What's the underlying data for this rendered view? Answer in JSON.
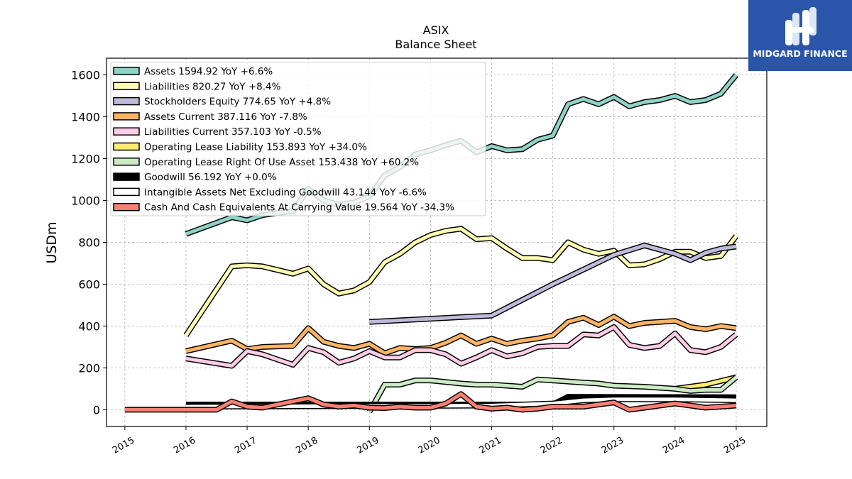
{
  "chart_data": {
    "type": "line",
    "title": "ASIX",
    "subtitle": "Balance  Sheet",
    "ylabel": "USDm",
    "xlabel": "",
    "xlim": [
      2014.7,
      2025.5
    ],
    "ylim": [
      -80,
      1680
    ],
    "x_ticks": [
      2015,
      2016,
      2017,
      2018,
      2019,
      2020,
      2021,
      2022,
      2023,
      2024,
      2025
    ],
    "y_ticks": [
      0,
      200,
      400,
      600,
      800,
      1000,
      1200,
      1400,
      1600
    ],
    "grid": true,
    "legend_position": "top-left",
    "series": [
      {
        "name": "Assets",
        "legend": "Assets  1594.92 YoY +6.6%",
        "color": "#8dd3c7",
        "points": [
          [
            2016.0,
            840
          ],
          [
            2016.75,
            920
          ],
          [
            2017.0,
            905
          ],
          [
            2017.25,
            930
          ],
          [
            2017.75,
            950
          ],
          [
            2018.0,
            1055
          ],
          [
            2018.25,
            1000
          ],
          [
            2018.5,
            980
          ],
          [
            2018.75,
            990
          ],
          [
            2019.0,
            1020
          ],
          [
            2019.25,
            1120
          ],
          [
            2019.5,
            1160
          ],
          [
            2019.75,
            1220
          ],
          [
            2020.0,
            1240
          ],
          [
            2020.25,
            1265
          ],
          [
            2020.5,
            1285
          ],
          [
            2020.75,
            1230
          ],
          [
            2021.0,
            1260
          ],
          [
            2021.25,
            1240
          ],
          [
            2021.5,
            1245
          ],
          [
            2021.75,
            1290
          ],
          [
            2022.0,
            1310
          ],
          [
            2022.25,
            1460
          ],
          [
            2022.5,
            1485
          ],
          [
            2022.75,
            1460
          ],
          [
            2023.0,
            1495
          ],
          [
            2023.25,
            1450
          ],
          [
            2023.5,
            1470
          ],
          [
            2023.75,
            1480
          ],
          [
            2024.0,
            1500
          ],
          [
            2024.25,
            1470
          ],
          [
            2024.5,
            1480
          ],
          [
            2024.75,
            1510
          ],
          [
            2025.0,
            1600
          ]
        ]
      },
      {
        "name": "Liabilities",
        "legend": "Liabilities  820.27 YoY +8.4%",
        "color": "#ffffb3",
        "points": [
          [
            2016.0,
            355
          ],
          [
            2016.75,
            685
          ],
          [
            2017.0,
            690
          ],
          [
            2017.25,
            685
          ],
          [
            2017.75,
            650
          ],
          [
            2018.0,
            675
          ],
          [
            2018.25,
            600
          ],
          [
            2018.5,
            555
          ],
          [
            2018.75,
            570
          ],
          [
            2019.0,
            610
          ],
          [
            2019.25,
            705
          ],
          [
            2019.5,
            745
          ],
          [
            2019.75,
            800
          ],
          [
            2020.0,
            835
          ],
          [
            2020.25,
            855
          ],
          [
            2020.5,
            865
          ],
          [
            2020.75,
            815
          ],
          [
            2021.0,
            820
          ],
          [
            2021.25,
            770
          ],
          [
            2021.5,
            725
          ],
          [
            2021.75,
            725
          ],
          [
            2022.0,
            715
          ],
          [
            2022.25,
            800
          ],
          [
            2022.5,
            765
          ],
          [
            2022.75,
            745
          ],
          [
            2023.0,
            760
          ],
          [
            2023.25,
            690
          ],
          [
            2023.5,
            695
          ],
          [
            2023.75,
            720
          ],
          [
            2024.0,
            755
          ],
          [
            2024.25,
            755
          ],
          [
            2024.5,
            725
          ],
          [
            2024.75,
            735
          ],
          [
            2025.0,
            830
          ]
        ]
      },
      {
        "name": "Stockholders Equity",
        "legend": "Stockholders Equity  774.65 YoY +4.8%",
        "color": "#bebada",
        "points": [
          [
            2019.0,
            420
          ],
          [
            2021.0,
            450
          ],
          [
            2022.0,
            600
          ],
          [
            2023.0,
            740
          ],
          [
            2023.5,
            785
          ],
          [
            2024.0,
            745
          ],
          [
            2024.25,
            715
          ],
          [
            2024.5,
            750
          ],
          [
            2024.75,
            770
          ],
          [
            2025.0,
            780
          ]
        ]
      },
      {
        "name": "Assets Current",
        "legend": "Assets Current  387.116 YoY -7.8%",
        "color": "#fdb462",
        "points": [
          [
            2016.0,
            280
          ],
          [
            2016.75,
            330
          ],
          [
            2017.0,
            290
          ],
          [
            2017.25,
            300
          ],
          [
            2017.75,
            305
          ],
          [
            2018.0,
            390
          ],
          [
            2018.25,
            325
          ],
          [
            2018.5,
            305
          ],
          [
            2018.75,
            295
          ],
          [
            2019.0,
            315
          ],
          [
            2019.25,
            270
          ],
          [
            2019.5,
            295
          ],
          [
            2019.75,
            290
          ],
          [
            2020.0,
            295
          ],
          [
            2020.25,
            320
          ],
          [
            2020.5,
            355
          ],
          [
            2020.75,
            315
          ],
          [
            2021.0,
            340
          ],
          [
            2021.25,
            315
          ],
          [
            2021.5,
            330
          ],
          [
            2021.75,
            340
          ],
          [
            2022.0,
            355
          ],
          [
            2022.25,
            420
          ],
          [
            2022.5,
            440
          ],
          [
            2022.75,
            405
          ],
          [
            2023.0,
            445
          ],
          [
            2023.25,
            400
          ],
          [
            2023.5,
            415
          ],
          [
            2023.75,
            420
          ],
          [
            2024.0,
            425
          ],
          [
            2024.25,
            395
          ],
          [
            2024.5,
            385
          ],
          [
            2024.75,
            400
          ],
          [
            2025.0,
            390
          ]
        ]
      },
      {
        "name": "Liabilities Current",
        "legend": "Liabilities Current  357.103 YoY -0.5%",
        "color": "#fccde5",
        "points": [
          [
            2016.0,
            245
          ],
          [
            2016.75,
            210
          ],
          [
            2017.0,
            280
          ],
          [
            2017.25,
            265
          ],
          [
            2017.75,
            215
          ],
          [
            2018.0,
            295
          ],
          [
            2018.25,
            275
          ],
          [
            2018.5,
            225
          ],
          [
            2018.75,
            245
          ],
          [
            2019.0,
            280
          ],
          [
            2019.25,
            250
          ],
          [
            2019.5,
            250
          ],
          [
            2019.75,
            285
          ],
          [
            2020.0,
            285
          ],
          [
            2020.25,
            265
          ],
          [
            2020.5,
            220
          ],
          [
            2020.75,
            250
          ],
          [
            2021.0,
            285
          ],
          [
            2021.25,
            255
          ],
          [
            2021.5,
            270
          ],
          [
            2021.75,
            300
          ],
          [
            2022.0,
            305
          ],
          [
            2022.25,
            305
          ],
          [
            2022.5,
            360
          ],
          [
            2022.75,
            355
          ],
          [
            2023.0,
            395
          ],
          [
            2023.25,
            310
          ],
          [
            2023.5,
            295
          ],
          [
            2023.75,
            305
          ],
          [
            2024.0,
            365
          ],
          [
            2024.25,
            285
          ],
          [
            2024.5,
            275
          ],
          [
            2024.75,
            300
          ],
          [
            2025.0,
            360
          ]
        ]
      },
      {
        "name": "Operating Lease Liability",
        "legend": "Operating Lease Liability  153.893 YoY +34.0%",
        "color": "#ffed6f",
        "points": [
          [
            2024.0,
            100
          ],
          [
            2024.5,
            120
          ],
          [
            2025.0,
            155
          ]
        ]
      },
      {
        "name": "Operating Lease Right Of Use Asset",
        "legend": "Operating Lease Right Of Use Asset  153.438 YoY +60.2%",
        "color": "#ccebc5",
        "points": [
          [
            2019.0,
            -10
          ],
          [
            2019.25,
            120
          ],
          [
            2019.5,
            120
          ],
          [
            2019.75,
            140
          ],
          [
            2020.0,
            140
          ],
          [
            2020.5,
            125
          ],
          [
            2020.75,
            120
          ],
          [
            2021.0,
            120
          ],
          [
            2021.5,
            110
          ],
          [
            2021.75,
            145
          ],
          [
            2022.0,
            140
          ],
          [
            2022.5,
            130
          ],
          [
            2022.75,
            125
          ],
          [
            2023.0,
            115
          ],
          [
            2023.5,
            110
          ],
          [
            2024.0,
            100
          ],
          [
            2024.25,
            90
          ],
          [
            2024.5,
            95
          ],
          [
            2024.75,
            95
          ],
          [
            2025.0,
            155
          ]
        ]
      },
      {
        "name": "Goodwill",
        "legend": "Goodwill  56.192 YoY +0.0%",
        "color": "#000000",
        "points": [
          [
            2016.0,
            25
          ],
          [
            2022.0,
            25
          ],
          [
            2022.25,
            62
          ],
          [
            2025.0,
            60
          ]
        ]
      },
      {
        "name": "Intangible Assets Net Excluding Goodwill",
        "legend": "Intangible Assets Net Excluding Goodwill  43.144 YoY -6.6%",
        "color": "#ffffff",
        "points": [
          [
            2016.0,
            15
          ],
          [
            2021.0,
            20
          ],
          [
            2022.0,
            30
          ],
          [
            2022.5,
            45
          ],
          [
            2023.0,
            50
          ],
          [
            2024.0,
            50
          ],
          [
            2025.0,
            45
          ]
        ]
      },
      {
        "name": "Cash And Cash Equivalents At Carrying Value",
        "legend": "Cash And Cash Equivalents At Carrying Value  19.564 YoY -34.3%",
        "color": "#fb8072",
        "points": [
          [
            2015.0,
            0
          ],
          [
            2016.5,
            0
          ],
          [
            2016.75,
            40
          ],
          [
            2017.0,
            15
          ],
          [
            2017.25,
            10
          ],
          [
            2017.5,
            25
          ],
          [
            2018.0,
            55
          ],
          [
            2018.25,
            25
          ],
          [
            2018.5,
            15
          ],
          [
            2018.75,
            20
          ],
          [
            2019.0,
            10
          ],
          [
            2019.25,
            8
          ],
          [
            2019.5,
            15
          ],
          [
            2019.75,
            10
          ],
          [
            2020.0,
            10
          ],
          [
            2020.25,
            30
          ],
          [
            2020.5,
            75
          ],
          [
            2020.75,
            15
          ],
          [
            2021.0,
            5
          ],
          [
            2021.25,
            10
          ],
          [
            2021.5,
            0
          ],
          [
            2021.75,
            5
          ],
          [
            2022.0,
            15
          ],
          [
            2022.5,
            15
          ],
          [
            2022.75,
            25
          ],
          [
            2023.0,
            35
          ],
          [
            2023.25,
            0
          ],
          [
            2023.5,
            10
          ],
          [
            2023.75,
            20
          ],
          [
            2024.0,
            30
          ],
          [
            2024.25,
            20
          ],
          [
            2024.5,
            10
          ],
          [
            2024.75,
            15
          ],
          [
            2025.0,
            20
          ]
        ]
      }
    ]
  },
  "logo": {
    "text": "MIDGARD FINANCE",
    "color": "#2a55a8"
  }
}
